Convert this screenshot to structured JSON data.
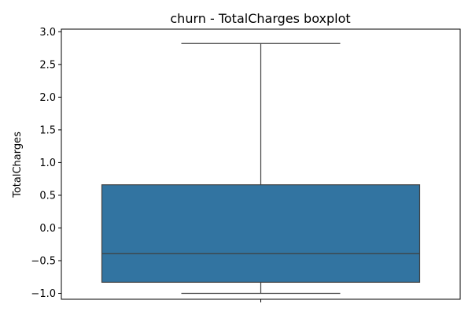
{
  "chart_data": {
    "type": "boxplot",
    "title": "churn - TotalCharges boxplot",
    "xlabel": "",
    "ylabel": "TotalCharges",
    "ylim": [
      -1.09,
      3.04
    ],
    "yticks": [
      -1.0,
      -0.5,
      0.0,
      0.5,
      1.0,
      1.5,
      2.0,
      2.5,
      3.0
    ],
    "ytick_labels": [
      "−1.0",
      "−0.5",
      "0.0",
      "0.5",
      "1.0",
      "1.5",
      "2.0",
      "2.5",
      "3.0"
    ],
    "grid": false,
    "legend": "none",
    "box": {
      "whisker_low": -1.0,
      "q1": -0.83,
      "median": -0.39,
      "q3": 0.66,
      "whisker_high": 2.82
    },
    "colors": {
      "box_fill": "#3274a1",
      "lines": "#3f3f3f",
      "axes": "#000000"
    }
  }
}
